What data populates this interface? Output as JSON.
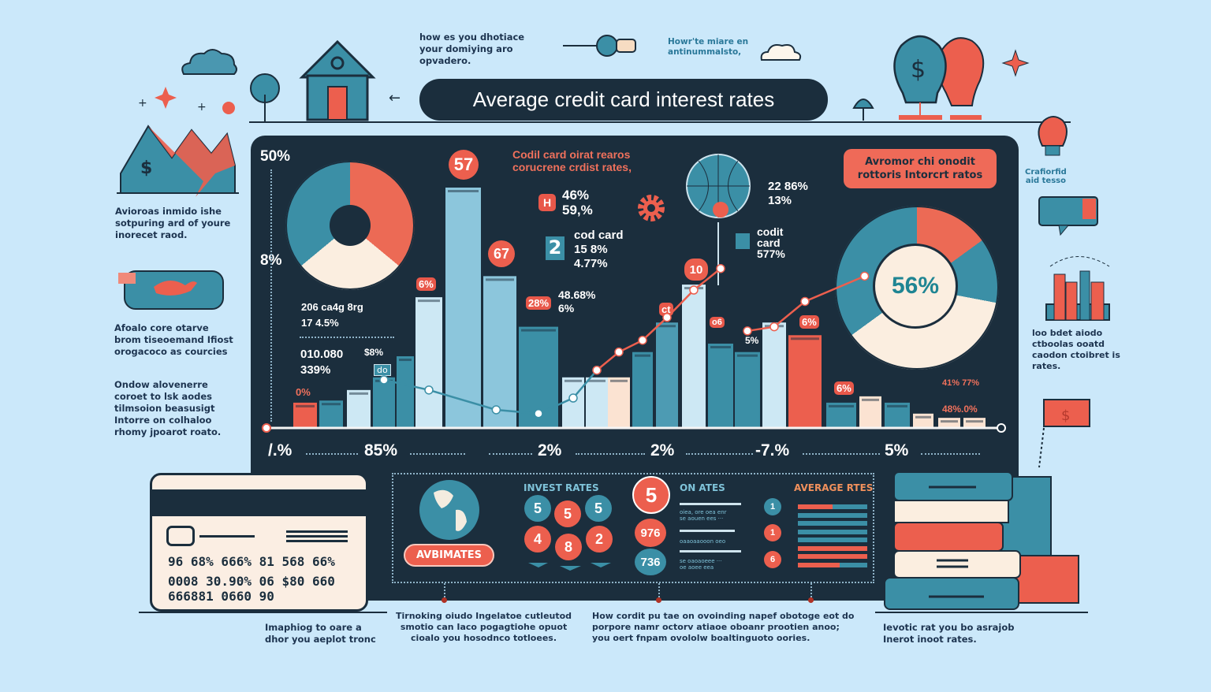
{
  "title": "Average credit card interest rates",
  "captions": {
    "top_house": "how es you dhotiace\nyour domiying aro\nopvadero.",
    "top_key": "Howr'te miare en\nantinummalsto,",
    "left_1": "Avioroas inmido ishe\nsotpuring ard of youre\ninorecet raod.",
    "left_2": "Afoalo core otarve\nbrom tiseoemand Ifiost\norogacoco as courcies",
    "left_3": "Ondow alovenerre\ncoroet to lsk aodes\ntilmsoion beasusigt\nIntorre on colhaloo\nrhomy jpoarot roato.",
    "right_bulb": "Crafiorfid\naid tesso",
    "right_chart": "loo bdet aiodo\nctboolas ooatd\ncaodon ctoibret is\nrates.",
    "bottom_card": "Imaphiog to oare a\ndhor you aeplot tronc",
    "bottom_mid1": "Tirnoking oiudo Ingelatoe cutleutod\nsmotio can Iaco pogagtiohe opuot\ncioalo you hosodnco totloees.",
    "bottom_mid2": "How cordit pu tae on ovoinding napef obotoge eot do\nporpore namr octorv atiaoe oboanr prootien anoo;\nyou oert fnpam ovololw boaltinguoto oories.",
    "bottom_books": "Ievotic rat you bo asrajob\nInerot inoot rates."
  },
  "chart_panel": {
    "y_labels": [
      "50%",
      "8%"
    ],
    "heading": "Codil card oirat rearos\ncorucrene crdist rates,",
    "badge_57": "57",
    "badge_67": "67",
    "badge_10": "10",
    "h_box": "H",
    "h_text": "46%\n59,%",
    "box_2": "2",
    "box_2_text": "cod card\n15 8%\n4.77%",
    "globe_text": "22 86%\n13%",
    "codit_text": "codit\ncard\n577%",
    "callout": "Avromor chi onodit\nrottoris Intorcrt ratos",
    "donut_left": {
      "segments": [
        {
          "color": "#ec6a55",
          "value": 36
        },
        {
          "color": "#fbeee0",
          "value": 28
        },
        {
          "color": "#3b8fa6",
          "value": 36
        }
      ]
    },
    "donut_right": {
      "center_label": "56%",
      "segments": [
        {
          "color": "#ec6a55",
          "value": 15
        },
        {
          "color": "#3b8fa6",
          "value": 13
        },
        {
          "color": "#fbeee0",
          "value": 37
        },
        {
          "color": "#3b8fa6",
          "value": 35
        }
      ]
    },
    "stat_1": "206 ca4g 8rg\n17 4.5%",
    "stat_2": "010.080\n339%",
    "stat_3": "$8%",
    "stat_0": "0%",
    "tags": {
      "t1": "6%",
      "t2": "28%",
      "t3": "ct",
      "t4": "o6",
      "t5": "6%",
      "t6": "6%",
      "t7": "do"
    },
    "stat_48": "48.68%\n6%",
    "stat_5": "5%",
    "small_r1": "41% 77%",
    "small_r2": "48%.0%"
  },
  "chart_data": {
    "type": "bar",
    "title": "Average credit card interest rates",
    "x_tick_labels": [
      "/.%",
      "85%",
      "2%",
      "2%",
      "-7.%",
      "5%"
    ],
    "y_tick_labels": [
      "50%",
      "8%"
    ],
    "grid": false,
    "values": [
      6,
      6.5,
      9,
      12,
      17,
      31,
      57,
      36,
      24,
      12,
      12,
      12,
      18,
      25,
      34,
      20,
      18,
      25,
      22,
      6,
      7.5,
      6,
      3.4,
      2.4,
      2.4
    ],
    "colors": [
      "#ec5f4e",
      "#3b8fa6",
      "#cde8f4",
      "#3b8fa6",
      "#3b8fa6",
      "#cde8f4",
      "#8cc6dc",
      "#8cc6dc",
      "#3b8fa6",
      "#cde8f4",
      "#cde8f4",
      "#fbe3d2",
      "#3b8fa6",
      "#4d9bb3",
      "#cde8f4",
      "#3b8fa6",
      "#3b8fa6",
      "#cde8f4",
      "#ec5f4e",
      "#3b8fa6",
      "#fbe3d2",
      "#3b8fa6",
      "#fbe3d2",
      "#fbe3d2",
      "#fbe3d2"
    ],
    "lines": [
      {
        "color": "#3b8fa6",
        "points": [
          [
            3,
            11.4
          ],
          [
            5,
            9
          ],
          [
            6.9,
            4.3
          ],
          [
            8,
            3.4
          ],
          [
            9,
            7.1
          ],
          [
            10,
            13.7
          ]
        ]
      },
      {
        "color": "#ec5f4e",
        "points": [
          [
            10,
            13.7
          ],
          [
            11,
            18
          ],
          [
            12,
            20.8
          ],
          [
            13,
            26.2
          ],
          [
            14,
            32.7
          ],
          [
            15,
            37.8
          ]
        ]
      },
      {
        "color": "#ec5f4e",
        "points": [
          [
            16,
            23
          ],
          [
            17,
            24
          ],
          [
            18,
            30
          ],
          [
            19.8,
            36
          ]
        ]
      }
    ]
  },
  "bottom_panel": {
    "globe_button": "AVBIMATES",
    "invest_title": "INVEST RATES",
    "invest_circles": [
      {
        "label": "5",
        "color": "#3b8fa6"
      },
      {
        "label": "5",
        "color": "#ec5f4e"
      },
      {
        "label": "5",
        "color": "#3b8fa6"
      },
      {
        "label": "4",
        "color": "#ec5f4e"
      },
      {
        "label": "8",
        "color": "#ec5f4e"
      },
      {
        "label": "2",
        "color": "#ec5f4e"
      }
    ],
    "big_5": "5",
    "c976": "976",
    "c736": "736",
    "on_rates_title": "ON ATES",
    "on_rows": [
      "oiea, ore oea enr\nse aouen ees ···",
      "oaaoaaooon oeo",
      "se oaoaoeee ···\noe aoee eea"
    ],
    "num_circles": [
      "1",
      "1",
      "6"
    ],
    "avg_title": "AVERAGE RTES",
    "avg_bars": [
      0.5,
      0,
      0,
      0,
      0,
      1,
      1,
      0.6
    ]
  },
  "credit_card": {
    "row1": "96 68% 666% 81 568 66%",
    "row2": "0008 30.90% 06 $80 660",
    "row3": "666881 0660 90"
  },
  "colors": {
    "background": "#cbe8fa",
    "panel": "#1b2e3d",
    "coral": "#ec5f4e",
    "teal": "#3b8fa6",
    "cream": "#fbeee0"
  }
}
